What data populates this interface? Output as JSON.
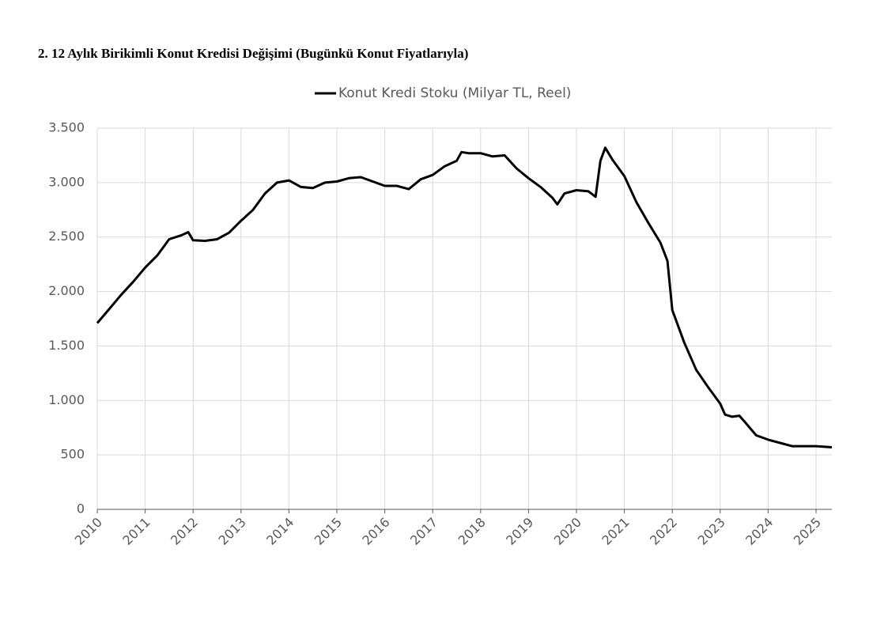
{
  "chart_data": {
    "type": "line",
    "title": "2. 12 Aylık Birikimli Konut Kredisi Değişimi (Bugünkü Konut Fiyatlarıyla)",
    "series": [
      {
        "name": "Konut Kredi Stoku (Milyar TL, Reel)",
        "color": "#000000",
        "x": [
          2010,
          2010.25,
          2010.5,
          2010.75,
          2011,
          2011.25,
          2011.5,
          2011.75,
          2011.9,
          2012,
          2012.25,
          2012.5,
          2012.75,
          2013,
          2013.25,
          2013.5,
          2013.75,
          2014,
          2014.25,
          2014.5,
          2014.75,
          2015,
          2015.25,
          2015.5,
          2015.75,
          2016,
          2016.25,
          2016.5,
          2016.75,
          2017,
          2017.25,
          2017.5,
          2017.6,
          2017.75,
          2018,
          2018.25,
          2018.5,
          2018.75,
          2019,
          2019.25,
          2019.5,
          2019.6,
          2019.75,
          2020,
          2020.25,
          2020.4,
          2020.5,
          2020.6,
          2020.75,
          2021,
          2021.25,
          2021.5,
          2021.75,
          2021.9,
          2022,
          2022.25,
          2022.5,
          2022.75,
          2023,
          2023.1,
          2023.25,
          2023.4,
          2023.5,
          2023.75,
          2024,
          2024.25,
          2024.5,
          2024.75,
          2025,
          2025.33
        ],
        "values": [
          1710,
          1840,
          1970,
          2090,
          2220,
          2330,
          2480,
          2515,
          2545,
          2470,
          2465,
          2480,
          2540,
          2650,
          2750,
          2900,
          3000,
          3020,
          2960,
          2950,
          3000,
          3010,
          3040,
          3050,
          3010,
          2970,
          2970,
          2940,
          3030,
          3070,
          3150,
          3200,
          3280,
          3270,
          3270,
          3240,
          3250,
          3130,
          3040,
          2960,
          2860,
          2800,
          2900,
          2930,
          2920,
          2870,
          3200,
          3320,
          3210,
          3060,
          2820,
          2630,
          2450,
          2280,
          1830,
          1530,
          1280,
          1120,
          970,
          870,
          850,
          860,
          810,
          680,
          640,
          610,
          580,
          580,
          580,
          570
        ]
      }
    ],
    "xlim": [
      2010,
      2025.33
    ],
    "xticks": [
      2010,
      2011,
      2012,
      2013,
      2014,
      2015,
      2016,
      2017,
      2018,
      2019,
      2020,
      2021,
      2022,
      2023,
      2024,
      2025
    ],
    "ylim": [
      0,
      3500
    ],
    "yticks": [
      0,
      500,
      {
        "value": 1000,
        "label": "1.000"
      },
      {
        "value": 1500,
        "label": "1.500"
      },
      {
        "value": 2000,
        "label": "2.000"
      },
      {
        "value": 2500,
        "label": "2.500"
      },
      {
        "value": 3000,
        "label": "3.000"
      },
      {
        "value": 3500,
        "label": "3.500"
      }
    ],
    "grid": true
  }
}
